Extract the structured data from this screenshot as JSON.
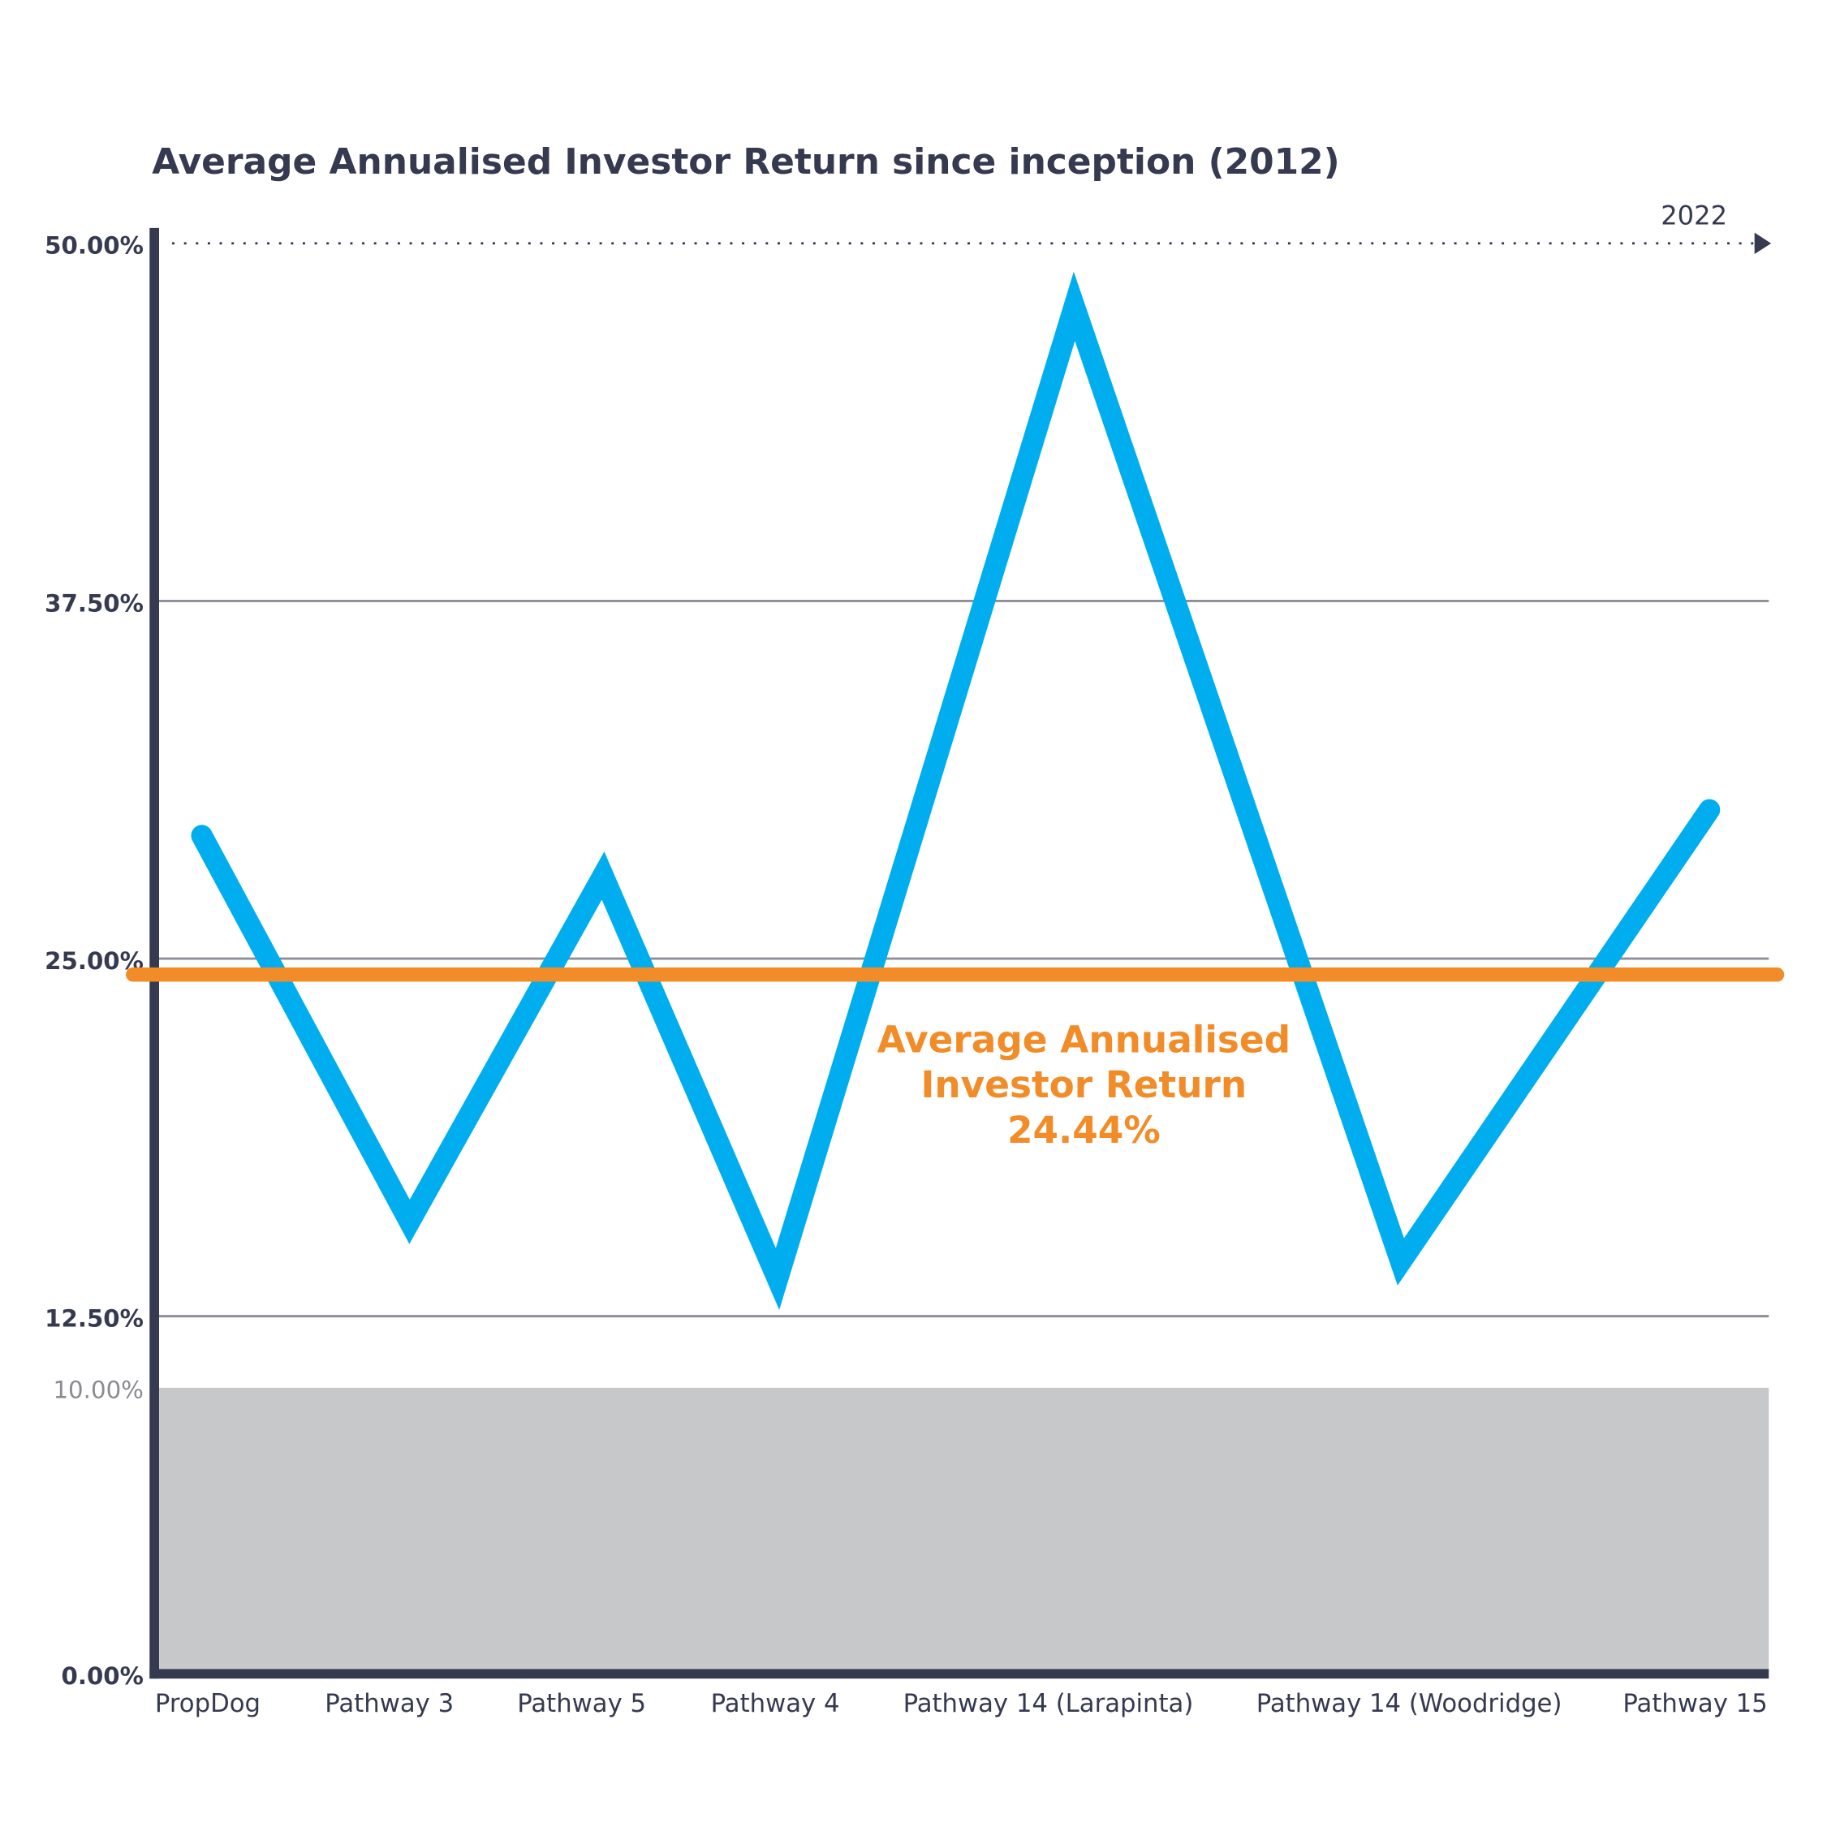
{
  "chart_data": {
    "type": "line",
    "title": "Average Annualised Investor Return since inception (2012)",
    "end_label": "2022",
    "categories": [
      "PropDog",
      "Pathway 3",
      "Pathway 5",
      "Pathway 4",
      "Pathway 14 (Larapinta)",
      "Pathway 14 (Woodridge)",
      "Pathway 15"
    ],
    "series": [
      {
        "color": "#00aeef",
        "values": [
          29.3,
          15.8,
          27.9,
          13.8,
          47.8,
          14.4,
          30.2
        ]
      }
    ],
    "average": {
      "lines": [
        "Average Annualised",
        "Investor Return"
      ],
      "value": 24.44,
      "value_label": "24.44%",
      "color": "#f28c28"
    },
    "shaded_band": {
      "from": 0,
      "to": 10,
      "label": "10.00%",
      "color": "#c7c8ca"
    },
    "ylim": [
      0,
      50
    ],
    "yticks": [
      {
        "value": 0,
        "label": "0.00%"
      },
      {
        "value": 12.5,
        "label": "12.50%"
      },
      {
        "value": 25,
        "label": "25.00%"
      },
      {
        "value": 37.5,
        "label": "37.50%"
      },
      {
        "value": 50,
        "label": "50.00%"
      }
    ],
    "grid": true
  }
}
